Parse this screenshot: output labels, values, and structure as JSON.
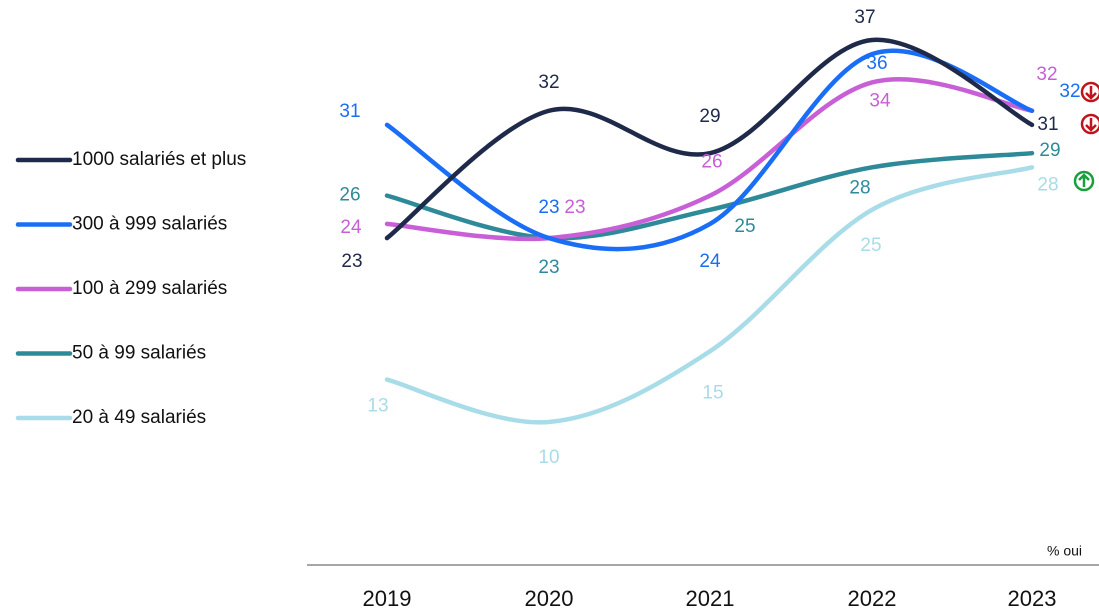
{
  "chart_data": {
    "type": "line",
    "x": [
      "2019",
      "2020",
      "2021",
      "2022",
      "2023"
    ],
    "annotation": "% oui",
    "series": [
      {
        "name": "1000 salariés et plus",
        "color": "#1f2a4a",
        "values": [
          23,
          32,
          29,
          37,
          31
        ]
      },
      {
        "name": "300 à 999 salariés",
        "color": "#1a6ef5",
        "values": [
          31,
          23,
          24,
          36,
          32
        ]
      },
      {
        "name": "100 à 299 salariés",
        "color": "#c85fd6",
        "values": [
          24,
          23,
          26,
          34,
          32
        ]
      },
      {
        "name": "50 à 99 salariés",
        "color": "#2e8a99",
        "values": [
          26,
          23,
          25,
          28,
          29
        ]
      },
      {
        "name": "20 à 49 salariés",
        "color": "#a8dce8",
        "values": [
          13,
          10,
          15,
          25,
          28
        ]
      }
    ]
  }
}
